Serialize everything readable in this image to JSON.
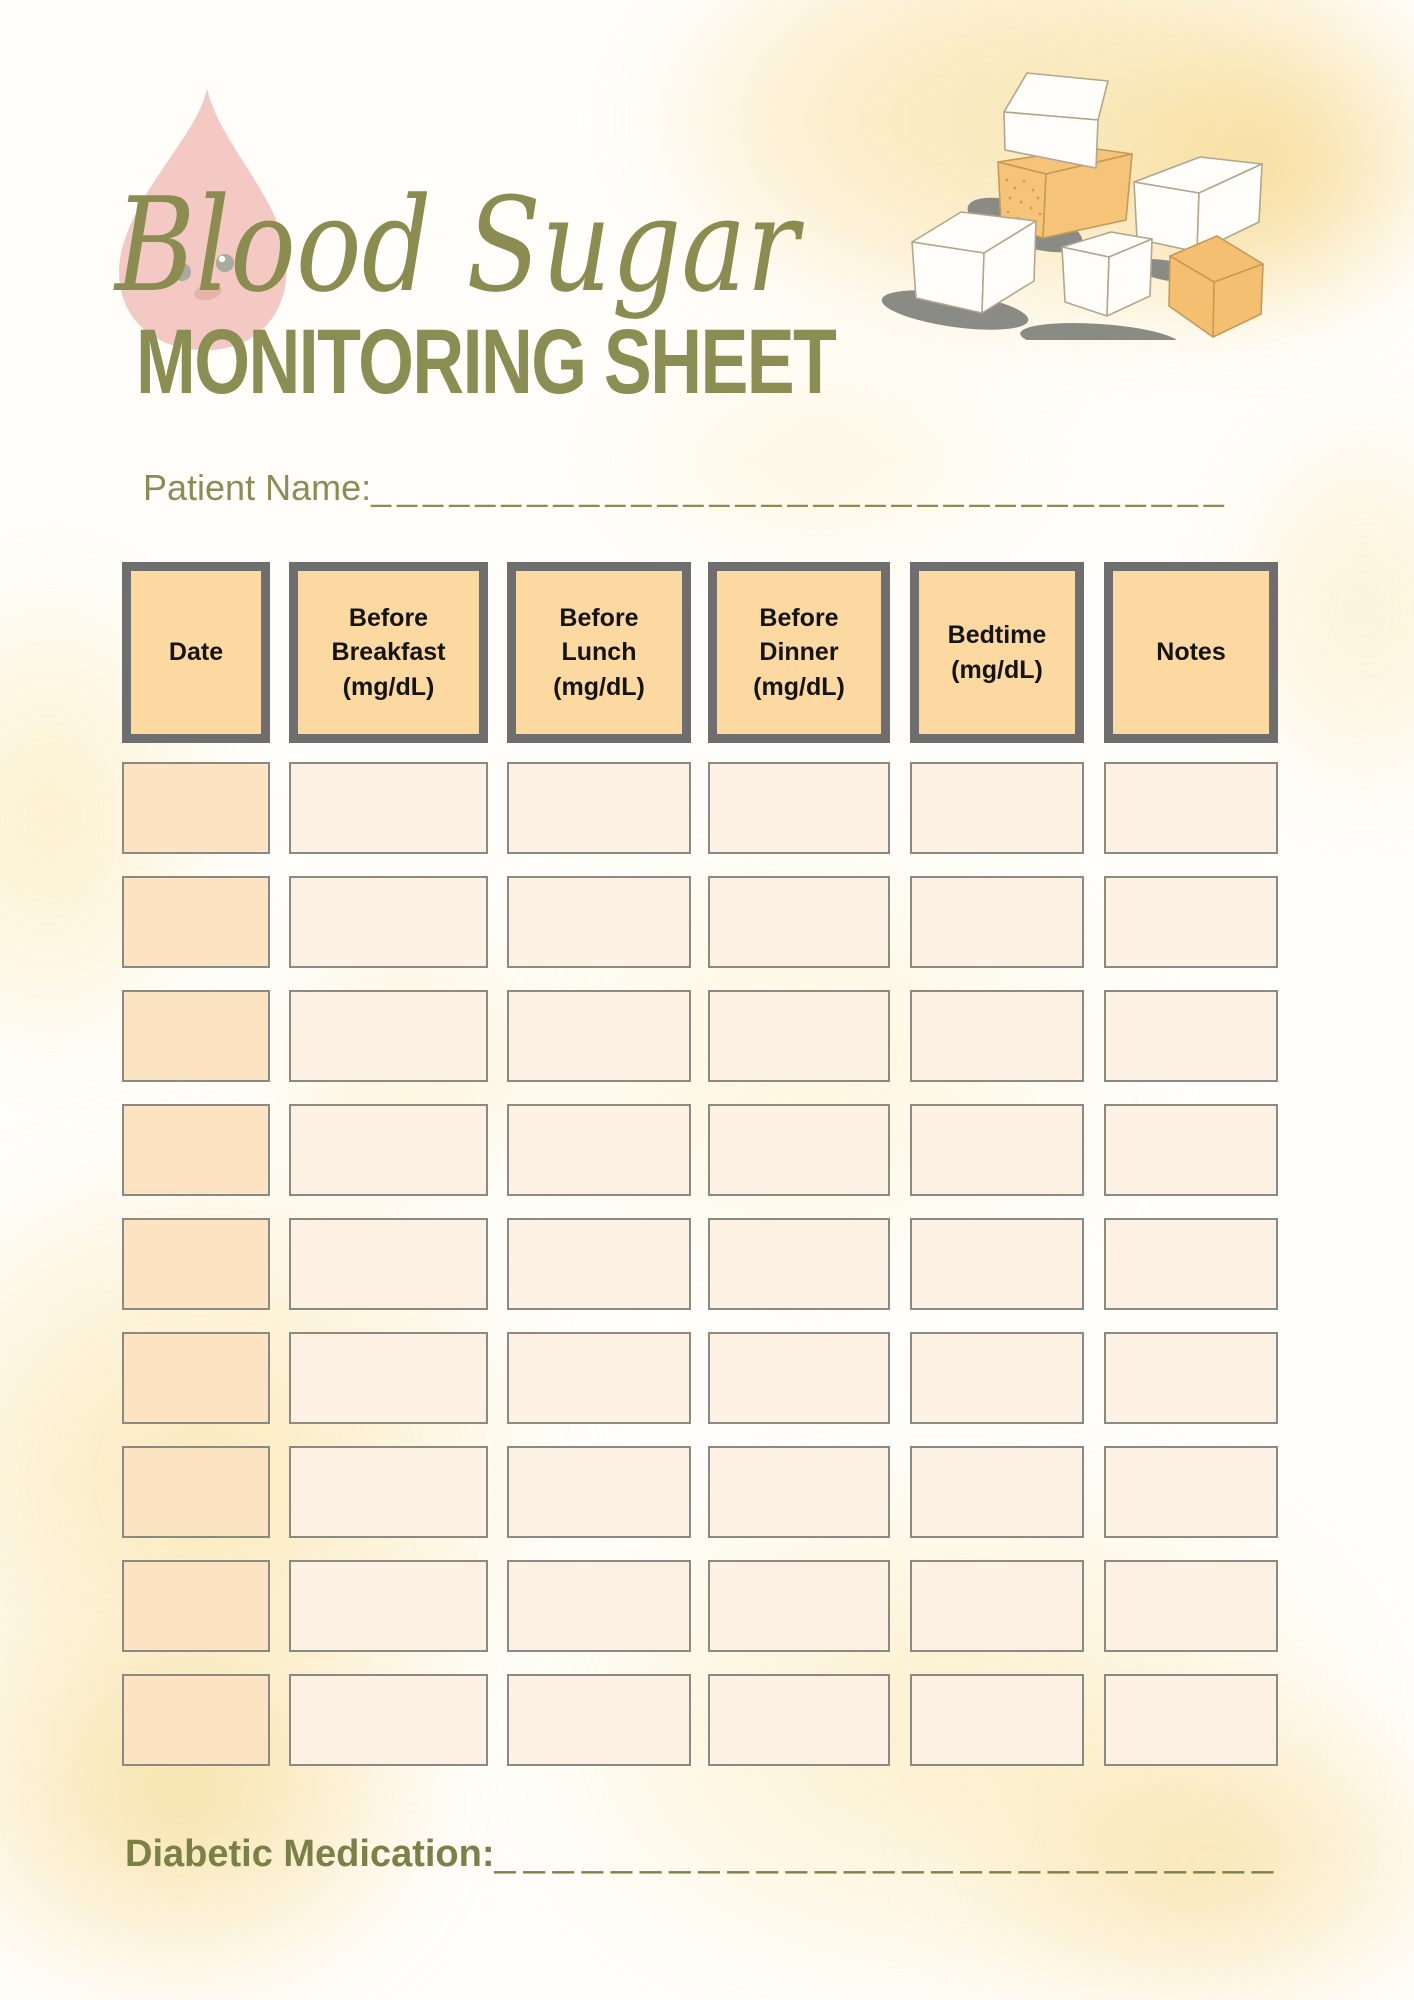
{
  "title": {
    "script": "Blood Sugar",
    "main": "MONITORING SHEET"
  },
  "patient": {
    "label": "Patient Name:",
    "blanks": "_________________________________"
  },
  "medication": {
    "label": "Diabetic Medication:",
    "blanks": "___________________________"
  },
  "table": {
    "headers": [
      "Date",
      "Before\nBreakfast\n(mg/dL)",
      "Before\nLunch\n(mg/dL)",
      "Before\nDinner\n(mg/dL)",
      "Bedtime\n(mg/dL)",
      "Notes"
    ],
    "rows": 9,
    "columns": 6,
    "cell_value": ""
  },
  "illustrations": {
    "blood_drop": "blood-drop-character",
    "sugar_cubes": "sugar-cubes"
  },
  "colors": {
    "accent_olive": "#8a8c50",
    "title_olive": "#8a8e52",
    "medication_olive": "#7b8146",
    "header_fill": "#fcd9a0",
    "header_border": "#6e6e6e",
    "date_cell_fill": "#fce4c3",
    "cell_fill": "#fdf1e3",
    "cell_border": "#8a8a85",
    "drop_pink": "#f4c8c3",
    "cube_orange": "#f6c478",
    "shadow_gray": "#8b8b85",
    "watercolor_yellow": "#f8e0a0"
  }
}
